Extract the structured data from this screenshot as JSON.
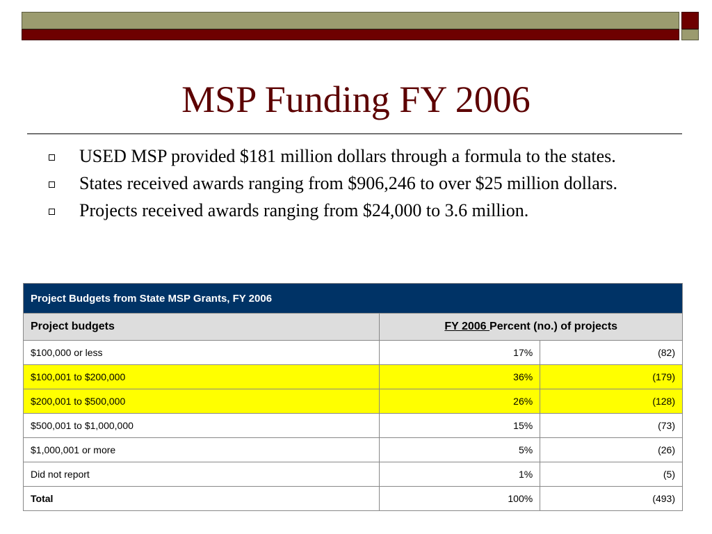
{
  "slide": {
    "title": "MSP Funding FY 2006",
    "bullets": [
      "USED MSP provided $181 million dollars through a formula to the states.",
      "States received awards ranging from $906,246 to over $25 million dollars.",
      "Projects received awards ranging from $24,000 to 3.6 million."
    ]
  },
  "table": {
    "caption": "Project Budgets from State MSP Grants, FY 2006",
    "header": {
      "col1": "Project budgets",
      "col2_underlined": "FY 2006 ",
      "col2_rest": "Percent (no.) of projects"
    },
    "rows": [
      {
        "label": "$100,000 or less",
        "percent": "17%",
        "count": "(82)"
      },
      {
        "label": "$100,001 to $200,000",
        "percent": "36%",
        "count": "(179)"
      },
      {
        "label": "$200,001 to $500,000",
        "percent": "26%",
        "count": "(128)"
      },
      {
        "label": "$500,001 to $1,000,000",
        "percent": "15%",
        "count": "(73)"
      },
      {
        "label": "$1,000,001 or more",
        "percent": "5%",
        "count": "(26)"
      },
      {
        "label": "Did not report",
        "percent": "1%",
        "count": "(5)"
      },
      {
        "label": "Total",
        "percent": "100%",
        "count": "(493)"
      }
    ]
  },
  "colors": {
    "title": "#5c0000",
    "caption_bg": "#003366",
    "highlight": "#ffff00",
    "header_bg": "#dddddd"
  }
}
